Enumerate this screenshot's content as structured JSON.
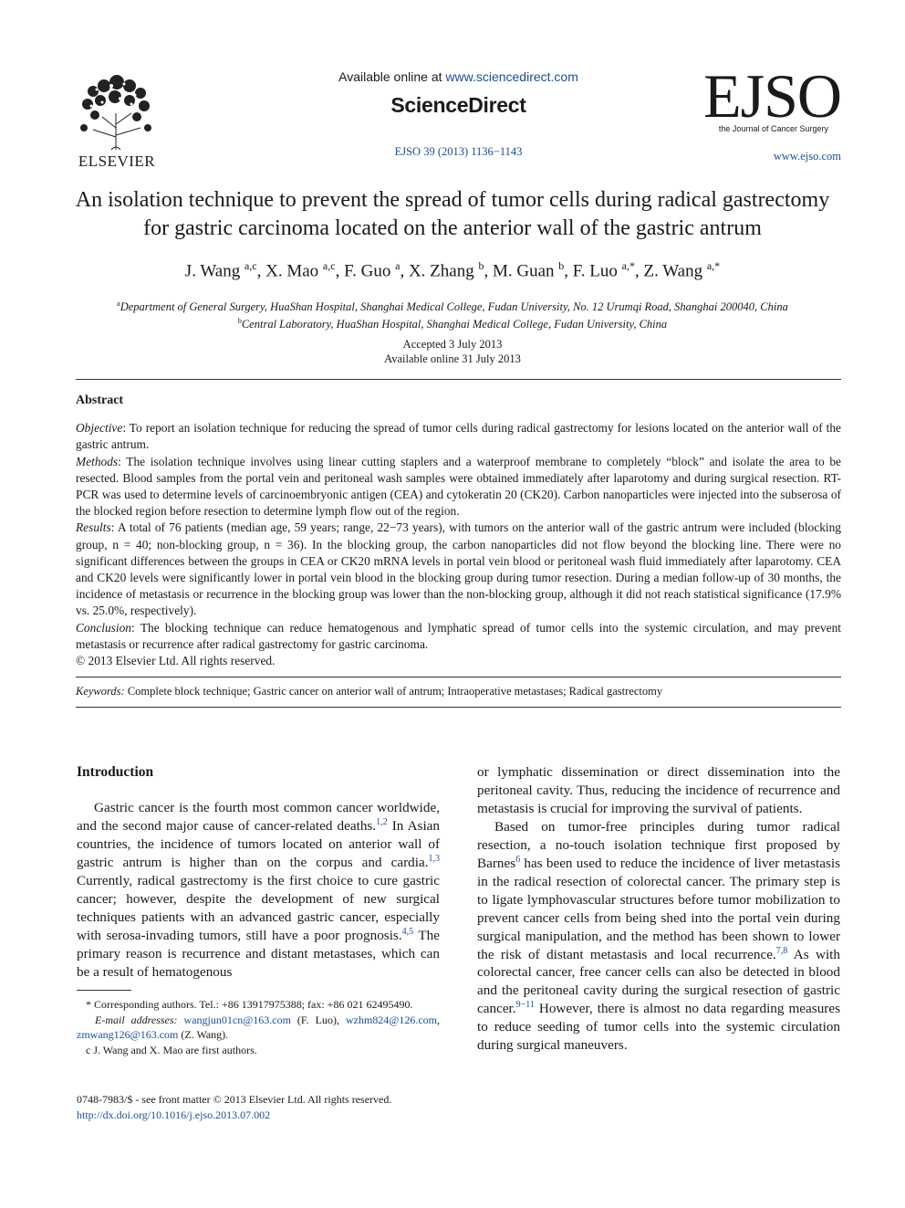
{
  "header": {
    "publisher": "ELSEVIER",
    "available_online_prefix": "Available online at ",
    "available_online_link": "www.sciencedirect.com",
    "sciencedirect": "ScienceDirect",
    "citation": "EJSO 39 (2013) 1136−1143",
    "journal_abbrev": "EJSO",
    "journal_subtitle": "the Journal of Cancer Surgery",
    "journal_web": "www.ejso.com"
  },
  "article": {
    "title": "An isolation technique to prevent the spread of tumor cells during radical gastrectomy for gastric carcinoma located on the anterior wall of the gastric antrum",
    "authors": [
      {
        "name": "J. Wang",
        "sup": "a,c",
        "sep": ", "
      },
      {
        "name": "X. Mao",
        "sup": "a,c",
        "sep": ", "
      },
      {
        "name": "F. Guo",
        "sup": "a",
        "sep": ", "
      },
      {
        "name": "X. Zhang",
        "sup": "b",
        "sep": ", "
      },
      {
        "name": "M. Guan",
        "sup": "b",
        "sep": ", "
      },
      {
        "name": "F. Luo",
        "sup": "a,*",
        "sep": ", "
      },
      {
        "name": "Z. Wang",
        "sup": "a,*",
        "sep": ""
      }
    ],
    "affiliations": [
      {
        "sup": "a",
        "text": "Department of General Surgery, HuaShan Hospital, Shanghai Medical College, Fudan University, No. 12 Urumqi Road, Shanghai 200040, China"
      },
      {
        "sup": "b",
        "text": "Central Laboratory, HuaShan Hospital, Shanghai Medical College, Fudan University, China"
      }
    ],
    "accepted": "Accepted 3 July 2013",
    "available_online": "Available online 31 July 2013"
  },
  "abstract": {
    "heading": "Abstract",
    "sections": [
      {
        "label": "Objective",
        "text": ": To report an isolation technique for reducing the spread of tumor cells during radical gastrectomy for lesions located on the anterior wall of the gastric antrum."
      },
      {
        "label": "Methods",
        "text": ": The isolation technique involves using linear cutting staplers and a waterproof membrane to completely “block” and isolate the area to be resected. Blood samples from the portal vein and peritoneal wash samples were obtained immediately after laparotomy and during surgical resection. RT-PCR was used to determine levels of carcinoembryonic antigen (CEA) and cytokeratin 20 (CK20). Carbon nanoparticles were injected into the subserosa of the blocked region before resection to determine lymph flow out of the region."
      },
      {
        "label": "Results",
        "text": ": A total of 76 patients (median age, 59 years; range, 22−73 years), with tumors on the anterior wall of the gastric antrum were included (blocking group, n = 40; non-blocking group, n = 36). In the blocking group, the carbon nanoparticles did not flow beyond the blocking line. There were no significant differences between the groups in CEA or CK20 mRNA levels in portal vein blood or peritoneal wash fluid immediately after laparotomy. CEA and CK20 levels were significantly lower in portal vein blood in the blocking group during tumor resection. During a median follow-up of 30 months, the incidence of metastasis or recurrence in the blocking group was lower than the non-blocking group, although it did not reach statistical significance (17.9% vs. 25.0%, respectively)."
      },
      {
        "label": "Conclusion",
        "text": ": The blocking technique can reduce hematogenous and lymphatic spread of tumor cells into the systemic circulation, and may prevent metastasis or recurrence after radical gastrectomy for gastric carcinoma."
      }
    ],
    "copyright": "© 2013 Elsevier Ltd. All rights reserved.",
    "keywords_label": "Keywords:",
    "keywords": " Complete block technique; Gastric cancer on anterior wall of antrum; Intraoperative metastases; Radical gastrectomy"
  },
  "body": {
    "intro_heading": "Introduction",
    "left_para": [
      {
        "t": "Gastric cancer is the fourth most common cancer worldwide, and the second major cause of cancer-related deaths."
      },
      {
        "r": "1,2"
      },
      {
        "t": " In Asian countries, the incidence of tumors located on anterior wall of gastric antrum is higher than on the corpus and cardia."
      },
      {
        "r": "1,3"
      },
      {
        "t": " Currently, radical gastrectomy is the first choice to cure gastric cancer; however, despite the development of new surgical techniques patients with an advanced gastric cancer, especially with serosa-invading tumors, still have a poor prognosis."
      },
      {
        "r": "4,5"
      },
      {
        "t": " The primary reason is recurrence and distant metastases, which can be a result of hematogenous"
      }
    ],
    "right_para1": "or lymphatic dissemination or direct dissemination into the peritoneal cavity. Thus, reducing the incidence of recurrence and metastasis is crucial for improving the survival of patients.",
    "right_para2": [
      {
        "t": "Based on tumor-free principles during tumor radical resection, a no-touch isolation technique first proposed by Barnes"
      },
      {
        "r": "6"
      },
      {
        "t": " has been used to reduce the incidence of liver metastasis in the radical resection of colorectal cancer. The primary step is to ligate lymphovascular structures before tumor mobilization to prevent cancer cells from being shed into the portal vein during surgical manipulation, and the method has been shown to lower the risk of distant metastasis and local recurrence."
      },
      {
        "r": "7,8"
      },
      {
        "t": " As with colorectal cancer, free cancer cells can also be detected in blood and the peritoneal cavity during the surgical resection of gastric cancer."
      },
      {
        "r": "9−11"
      },
      {
        "t": " However, there is almost no data regarding measures to reduce seeding of tumor cells into the systemic circulation during surgical maneuvers."
      }
    ]
  },
  "footnotes": {
    "corresponding": "* Corresponding authors. Tel.: +86 13917975388; fax: +86 021 62495490.",
    "email_label": "E-mail addresses:",
    "email1": "wangjun01cn@163.com",
    "email1_who": " (F. Luo), ",
    "email2": "wzhm824@126.com",
    "email2_sep": ", ",
    "email3": "zmwang126@163.com",
    "email3_who": " (Z. Wang).",
    "equal_contrib": "c J. Wang and X. Mao are first authors."
  },
  "footer": {
    "issn": "0748-7983/$ - see front matter © 2013 Elsevier Ltd. All rights reserved.",
    "doi": "http://dx.doi.org/10.1016/j.ejso.2013.07.002"
  }
}
